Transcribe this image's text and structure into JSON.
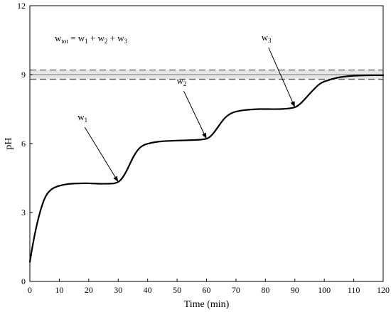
{
  "chart_data": {
    "type": "line",
    "xlabel": "Time (min)",
    "ylabel": "pH",
    "xlim": [
      0,
      120
    ],
    "ylim": [
      0,
      12
    ],
    "xticks": [
      "0",
      "10",
      "20",
      "30",
      "40",
      "50",
      "60",
      "70",
      "80",
      "90",
      "100",
      "110",
      "120"
    ],
    "yticks": [
      "0",
      "3",
      "6",
      "9",
      "12"
    ],
    "grid": false,
    "legend": "none",
    "series": [
      {
        "color": "#000000",
        "x": [
          0,
          1,
          2,
          3,
          4,
          5,
          6,
          7,
          8,
          9,
          10,
          12,
          15,
          18,
          20,
          22,
          25,
          28,
          29,
          30,
          31,
          32,
          33,
          34,
          35,
          36,
          37,
          38,
          39,
          40,
          42,
          45,
          50,
          55,
          58,
          60,
          61,
          62,
          63,
          64,
          65,
          66,
          67,
          68,
          69,
          70,
          72,
          75,
          78,
          80,
          85,
          88,
          90,
          91,
          92,
          93,
          94,
          95,
          96,
          97,
          98,
          99,
          100,
          101,
          102,
          103,
          105,
          108,
          110,
          115,
          120
        ],
        "y": [
          0.85,
          1.6,
          2.25,
          2.8,
          3.25,
          3.6,
          3.83,
          3.97,
          4.06,
          4.12,
          4.16,
          4.22,
          4.26,
          4.27,
          4.27,
          4.26,
          4.25,
          4.26,
          4.28,
          4.33,
          4.44,
          4.62,
          4.85,
          5.12,
          5.38,
          5.6,
          5.77,
          5.88,
          5.95,
          5.99,
          6.05,
          6.1,
          6.13,
          6.15,
          6.17,
          6.21,
          6.28,
          6.4,
          6.56,
          6.74,
          6.92,
          7.08,
          7.2,
          7.29,
          7.35,
          7.39,
          7.44,
          7.48,
          7.5,
          7.5,
          7.5,
          7.53,
          7.58,
          7.65,
          7.75,
          7.88,
          8.02,
          8.16,
          8.3,
          8.43,
          8.55,
          8.64,
          8.7,
          8.74,
          8.78,
          8.82,
          8.88,
          8.93,
          8.95,
          8.97,
          8.97
        ]
      }
    ],
    "band": {
      "center": 9.0,
      "lower": 8.8,
      "upper": 9.2
    },
    "annotations": {
      "formula_lhs": "w",
      "formula_lhs_sub": "tot",
      "formula_eq": " = ",
      "formula_t1": "w",
      "formula_t1_sub": "1",
      "formula_plus1": " + ",
      "formula_t2": "w",
      "formula_t2_sub": "2",
      "formula_plus2": " + ",
      "formula_t3": "w",
      "formula_t3_sub": "3",
      "arrows": [
        {
          "label": "w",
          "sub": "1",
          "point_x": 30,
          "point_y": 4.33
        },
        {
          "label": "w",
          "sub": "2",
          "point_x": 60,
          "point_y": 6.21
        },
        {
          "label": "w",
          "sub": "3",
          "point_x": 90,
          "point_y": 7.58
        }
      ]
    }
  }
}
